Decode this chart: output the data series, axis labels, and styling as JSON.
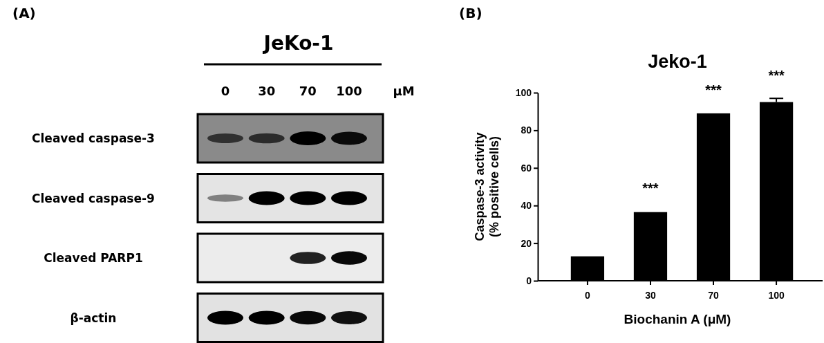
{
  "chart_data": [
    {
      "type": "other",
      "title": "JeKo-1",
      "categories": [
        "0",
        "30",
        "70",
        "100"
      ],
      "y_categories": [
        "Cleaved caspase-3",
        "Cleaved caspase-9",
        "Cleaved PARP1",
        "β-actin"
      ],
      "annotations": [
        "(A)",
        "μM"
      ]
    },
    {
      "type": "bar",
      "title": "Jeko-1",
      "xlabel": "Biochanin A (μM)",
      "ylabel": "Caspase-3 activity\n(% positive cells)",
      "categories": [
        "0",
        "30",
        "70",
        "100"
      ],
      "values": [
        13,
        36.5,
        89,
        95
      ],
      "errors": [
        null,
        null,
        null,
        2
      ],
      "color": "#000000",
      "ylim": [
        0,
        100
      ],
      "yticks": [
        0,
        20,
        40,
        60,
        80,
        100
      ],
      "annotations": [
        "(B)",
        {
          "text": "***",
          "x": "30",
          "y": 37
        },
        {
          "text": "***",
          "x": "70",
          "y": 89.5
        },
        {
          "text": "***",
          "x": "100",
          "y": 97
        }
      ]
    }
  ]
}
